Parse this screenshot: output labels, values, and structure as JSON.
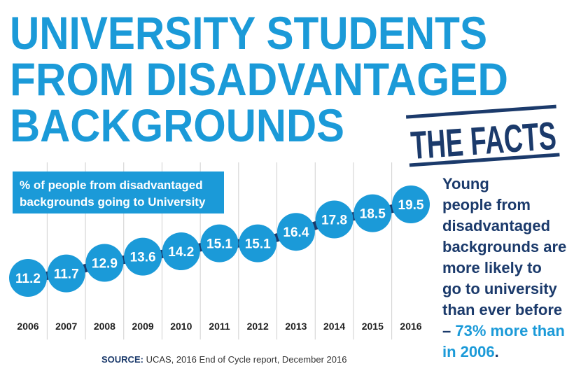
{
  "title_lines": [
    "UNIVERSITY STUDENTS",
    "FROM DISADVANTAGED",
    "BACKGROUNDS"
  ],
  "stamp": "THE FACTS",
  "colors": {
    "accent": "#1b9ad8",
    "navy": "#1b3a6b"
  },
  "chart_data": {
    "type": "line",
    "legend_lines": [
      "% of people from disadvantaged",
      "backgrounds going to University"
    ],
    "categories": [
      "2006",
      "2007",
      "2008",
      "2009",
      "2010",
      "2011",
      "2012",
      "2013",
      "2014",
      "2015",
      "2016"
    ],
    "values": [
      11.2,
      11.7,
      12.9,
      13.6,
      14.2,
      15.1,
      15.1,
      16.4,
      17.8,
      18.5,
      19.5
    ],
    "value_labels": [
      "11.2",
      "11.7",
      "12.9",
      "13.6",
      "14.2",
      "15.1",
      "15.1",
      "16.4",
      "17.8",
      "18.5",
      "19.5"
    ],
    "grid": true
  },
  "source": {
    "label": "SOURCE:",
    "text": " UCAS, 2016 End of Cycle report, December 2016"
  },
  "note": {
    "lines": [
      "Young",
      "people from",
      "disadvantaged",
      "backgrounds are",
      "more likely to",
      "go to university",
      "than ever before"
    ],
    "dash": "– ",
    "highlight_lines": [
      "73% more than",
      "in 2006"
    ],
    "end": "."
  }
}
